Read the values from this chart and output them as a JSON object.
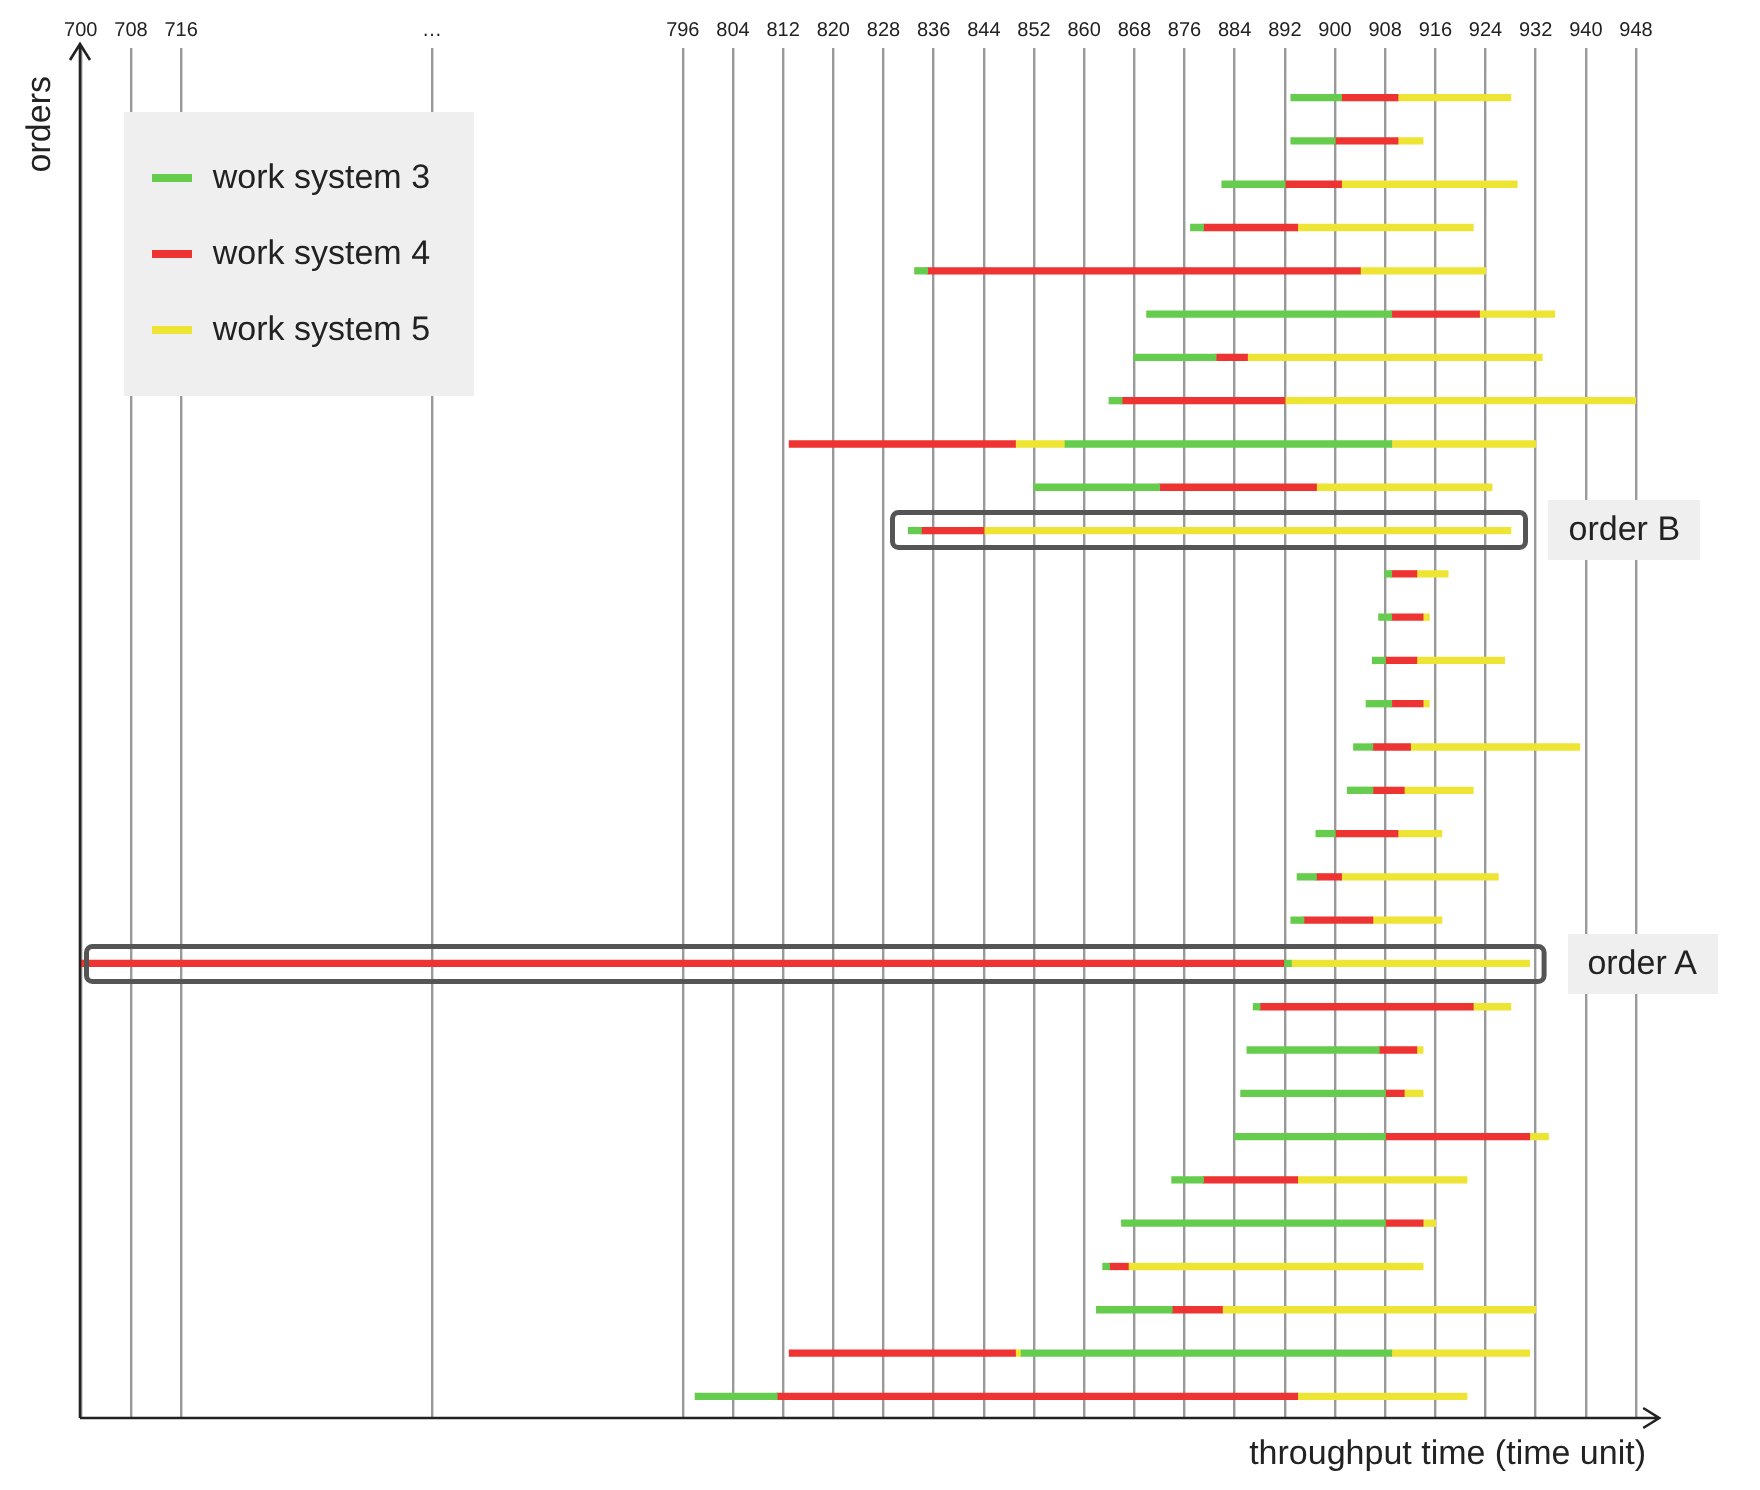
{
  "chart_data": {
    "type": "bar",
    "orientation": "horizontal",
    "ylabel": "orders",
    "xlabel": "throughput time (time unit)",
    "categories": [
      null,
      null,
      null,
      null,
      null,
      null,
      null,
      null,
      null,
      null,
      null,
      null,
      null,
      null,
      null,
      null,
      null,
      null,
      null,
      null,
      null,
      null,
      null,
      null,
      null,
      null,
      null,
      null,
      null,
      null,
      null
    ],
    "xlim": [
      700,
      948
    ],
    "xticks": [
      700,
      708,
      716,
      {
        "value": 756,
        "label": "…"
      },
      796,
      804,
      812,
      820,
      828,
      836,
      844,
      852,
      860,
      868,
      876,
      884,
      892,
      900,
      908,
      916,
      924,
      932,
      940,
      948
    ],
    "grid": "x",
    "legend": "top left",
    "tick_labels": "x",
    "annotations": [
      "order B",
      "order A"
    ],
    "series": [
      {
        "name": "work system 3",
        "color": "#66cc4d",
        "base": [
          893,
          893,
          882,
          877,
          833,
          870,
          868,
          864,
          857,
          852,
          832,
          908,
          907,
          906,
          905,
          903,
          902,
          897,
          894,
          893,
          892,
          887,
          886,
          885,
          884,
          874,
          866,
          863,
          862,
          850,
          798
        ],
        "values": [
          8,
          7,
          10,
          2,
          2,
          39,
          13,
          2,
          52,
          20,
          2,
          1,
          2,
          2,
          4,
          3,
          4,
          3,
          3,
          2,
          1,
          1,
          21,
          23,
          24,
          5,
          42,
          1,
          12,
          59,
          13
        ]
      },
      {
        "name": "work system 4",
        "color": "#ee3333",
        "base": [
          901,
          900,
          892,
          879,
          835,
          909,
          881,
          866,
          813,
          872,
          834,
          909,
          909,
          908,
          909,
          906,
          906,
          900,
          897,
          895,
          700,
          888,
          907,
          908,
          908,
          879,
          908,
          864,
          874,
          813,
          811
        ],
        "values": [
          9,
          10,
          9,
          15,
          69,
          14,
          5,
          26,
          36,
          25,
          10,
          4,
          5,
          5,
          5,
          6,
          5,
          10,
          4,
          11,
          192,
          34,
          6,
          3,
          23,
          15,
          6,
          3,
          8,
          36,
          83
        ]
      },
      {
        "name": "work system 5",
        "color": "#eee433",
        "base": [
          910,
          910,
          901,
          894,
          904,
          923,
          886,
          892,
          909,
          897,
          844,
          913,
          914,
          913,
          914,
          912,
          911,
          910,
          901,
          906,
          893,
          922,
          913,
          911,
          931,
          894,
          914,
          867,
          882,
          909,
          894
        ],
        "values": [
          18,
          4,
          28,
          28,
          20,
          12,
          47,
          56,
          23,
          28,
          84,
          5,
          1,
          14,
          1,
          27,
          11,
          7,
          25,
          11,
          38,
          6,
          1,
          3,
          3,
          27,
          2,
          47,
          50,
          22,
          27
        ]
      },
      {
        "color": "#eee433",
        "base": [
          null,
          null,
          null,
          null,
          null,
          null,
          null,
          null,
          849,
          null,
          null,
          null,
          null,
          null,
          null,
          null,
          null,
          null,
          null,
          null,
          null,
          null,
          null,
          null,
          null,
          null,
          null,
          null,
          null,
          849,
          null
        ],
        "values": [
          null,
          null,
          null,
          null,
          null,
          null,
          null,
          null,
          8,
          null,
          null,
          null,
          null,
          null,
          null,
          null,
          null,
          null,
          null,
          null,
          null,
          null,
          null,
          null,
          null,
          null,
          null,
          null,
          null,
          1,
          null
        ]
      }
    ]
  }
}
